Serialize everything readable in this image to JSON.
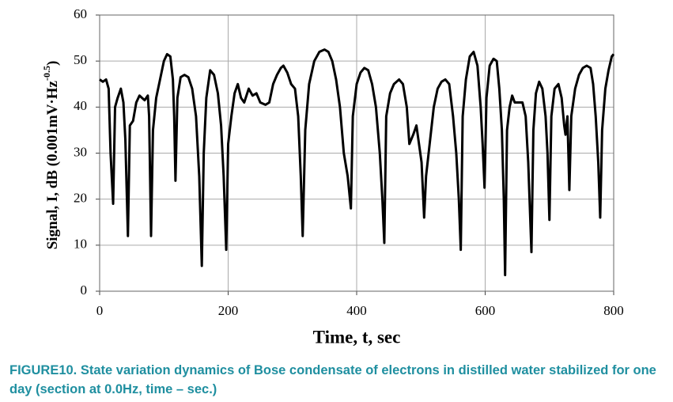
{
  "chart_data": {
    "type": "line",
    "xlabel": "Time, t, sec",
    "ylabel": [
      "Signal, I, dB (0.001mV·Hz",
      "-0.5",
      ")"
    ],
    "x": [
      0,
      5,
      10,
      14,
      17,
      21,
      24,
      28,
      33,
      37,
      40,
      44,
      47,
      52,
      57,
      62,
      66,
      70,
      75,
      77,
      80,
      83,
      88,
      94,
      100,
      105,
      110,
      114,
      116,
      118,
      121,
      126,
      132,
      138,
      144,
      150,
      155,
      159,
      162,
      166,
      172,
      178,
      184,
      189,
      193,
      197,
      200,
      205,
      210,
      215,
      220,
      225,
      232,
      238,
      244,
      250,
      258,
      264,
      270,
      276,
      282,
      286,
      292,
      298,
      304,
      309,
      313,
      316,
      320,
      326,
      334,
      342,
      350,
      356,
      362,
      368,
      374,
      380,
      386,
      391,
      394,
      400,
      406,
      412,
      418,
      424,
      430,
      436,
      440,
      443,
      446,
      452,
      458,
      466,
      472,
      478,
      482,
      488,
      493,
      497,
      501,
      505,
      508,
      512,
      516,
      520,
      526,
      532,
      538,
      544,
      550,
      555,
      559,
      562,
      565,
      570,
      576,
      582,
      588,
      593,
      596,
      599,
      602,
      607,
      613,
      618,
      622,
      626,
      629,
      631,
      634,
      638,
      642,
      646,
      652,
      658,
      663,
      667,
      672,
      675,
      679,
      684,
      689,
      694,
      697,
      700,
      703,
      708,
      714,
      719,
      723,
      725,
      728,
      731,
      734,
      740,
      746,
      752,
      758,
      764,
      768,
      772,
      776,
      779,
      782,
      787,
      792,
      797,
      800
    ],
    "values": [
      46,
      45.5,
      46,
      44,
      30,
      19,
      40,
      42,
      44,
      41,
      33,
      12,
      36,
      37,
      41,
      42.5,
      42,
      41.5,
      42.5,
      38,
      12,
      35,
      42,
      46,
      50,
      51.5,
      51,
      46,
      38,
      24,
      42,
      46.5,
      47,
      46.5,
      44,
      38,
      25,
      5.5,
      30,
      42,
      48,
      47,
      43,
      36,
      25,
      9,
      32,
      38,
      43,
      45,
      42,
      41,
      44,
      42.5,
      43,
      41,
      40.5,
      41,
      45,
      47,
      48.5,
      49,
      47.5,
      45,
      44,
      38,
      25,
      12,
      35,
      45,
      50,
      52,
      52.5,
      52,
      50,
      46,
      40,
      30,
      25,
      18,
      38,
      45,
      47.5,
      48.5,
      48,
      45,
      40,
      30,
      20,
      10.5,
      38,
      43,
      45,
      46,
      45,
      40,
      32,
      34,
      36,
      32,
      28,
      16,
      25,
      30,
      35,
      40,
      44,
      45.5,
      46,
      45,
      38,
      30,
      20,
      9,
      38,
      46,
      51,
      52,
      49,
      40,
      32,
      22.5,
      42,
      49,
      50.5,
      50,
      44,
      35,
      20,
      3.5,
      35,
      40,
      42.5,
      41,
      41,
      41,
      38,
      28,
      8.5,
      35,
      43,
      45.5,
      44,
      38,
      30,
      15.5,
      38,
      44,
      45,
      42,
      36,
      34,
      38,
      22,
      38,
      44,
      47,
      48.5,
      49,
      48.5,
      45,
      38,
      28,
      16,
      35,
      44,
      48,
      51,
      51.5
    ],
    "color": "#000000",
    "xlim": [
      0,
      800
    ],
    "xticks": [
      0,
      200,
      400,
      600,
      800
    ],
    "ylim": [
      0,
      60
    ],
    "yticks": [
      0,
      10,
      20,
      30,
      40,
      50,
      60
    ],
    "grid": true
  },
  "caption": "FIGURE10. State variation dynamics of Bose condensate of electrons in distilled water stabilized for one day (section at 0.0Hz, time – sec.)"
}
